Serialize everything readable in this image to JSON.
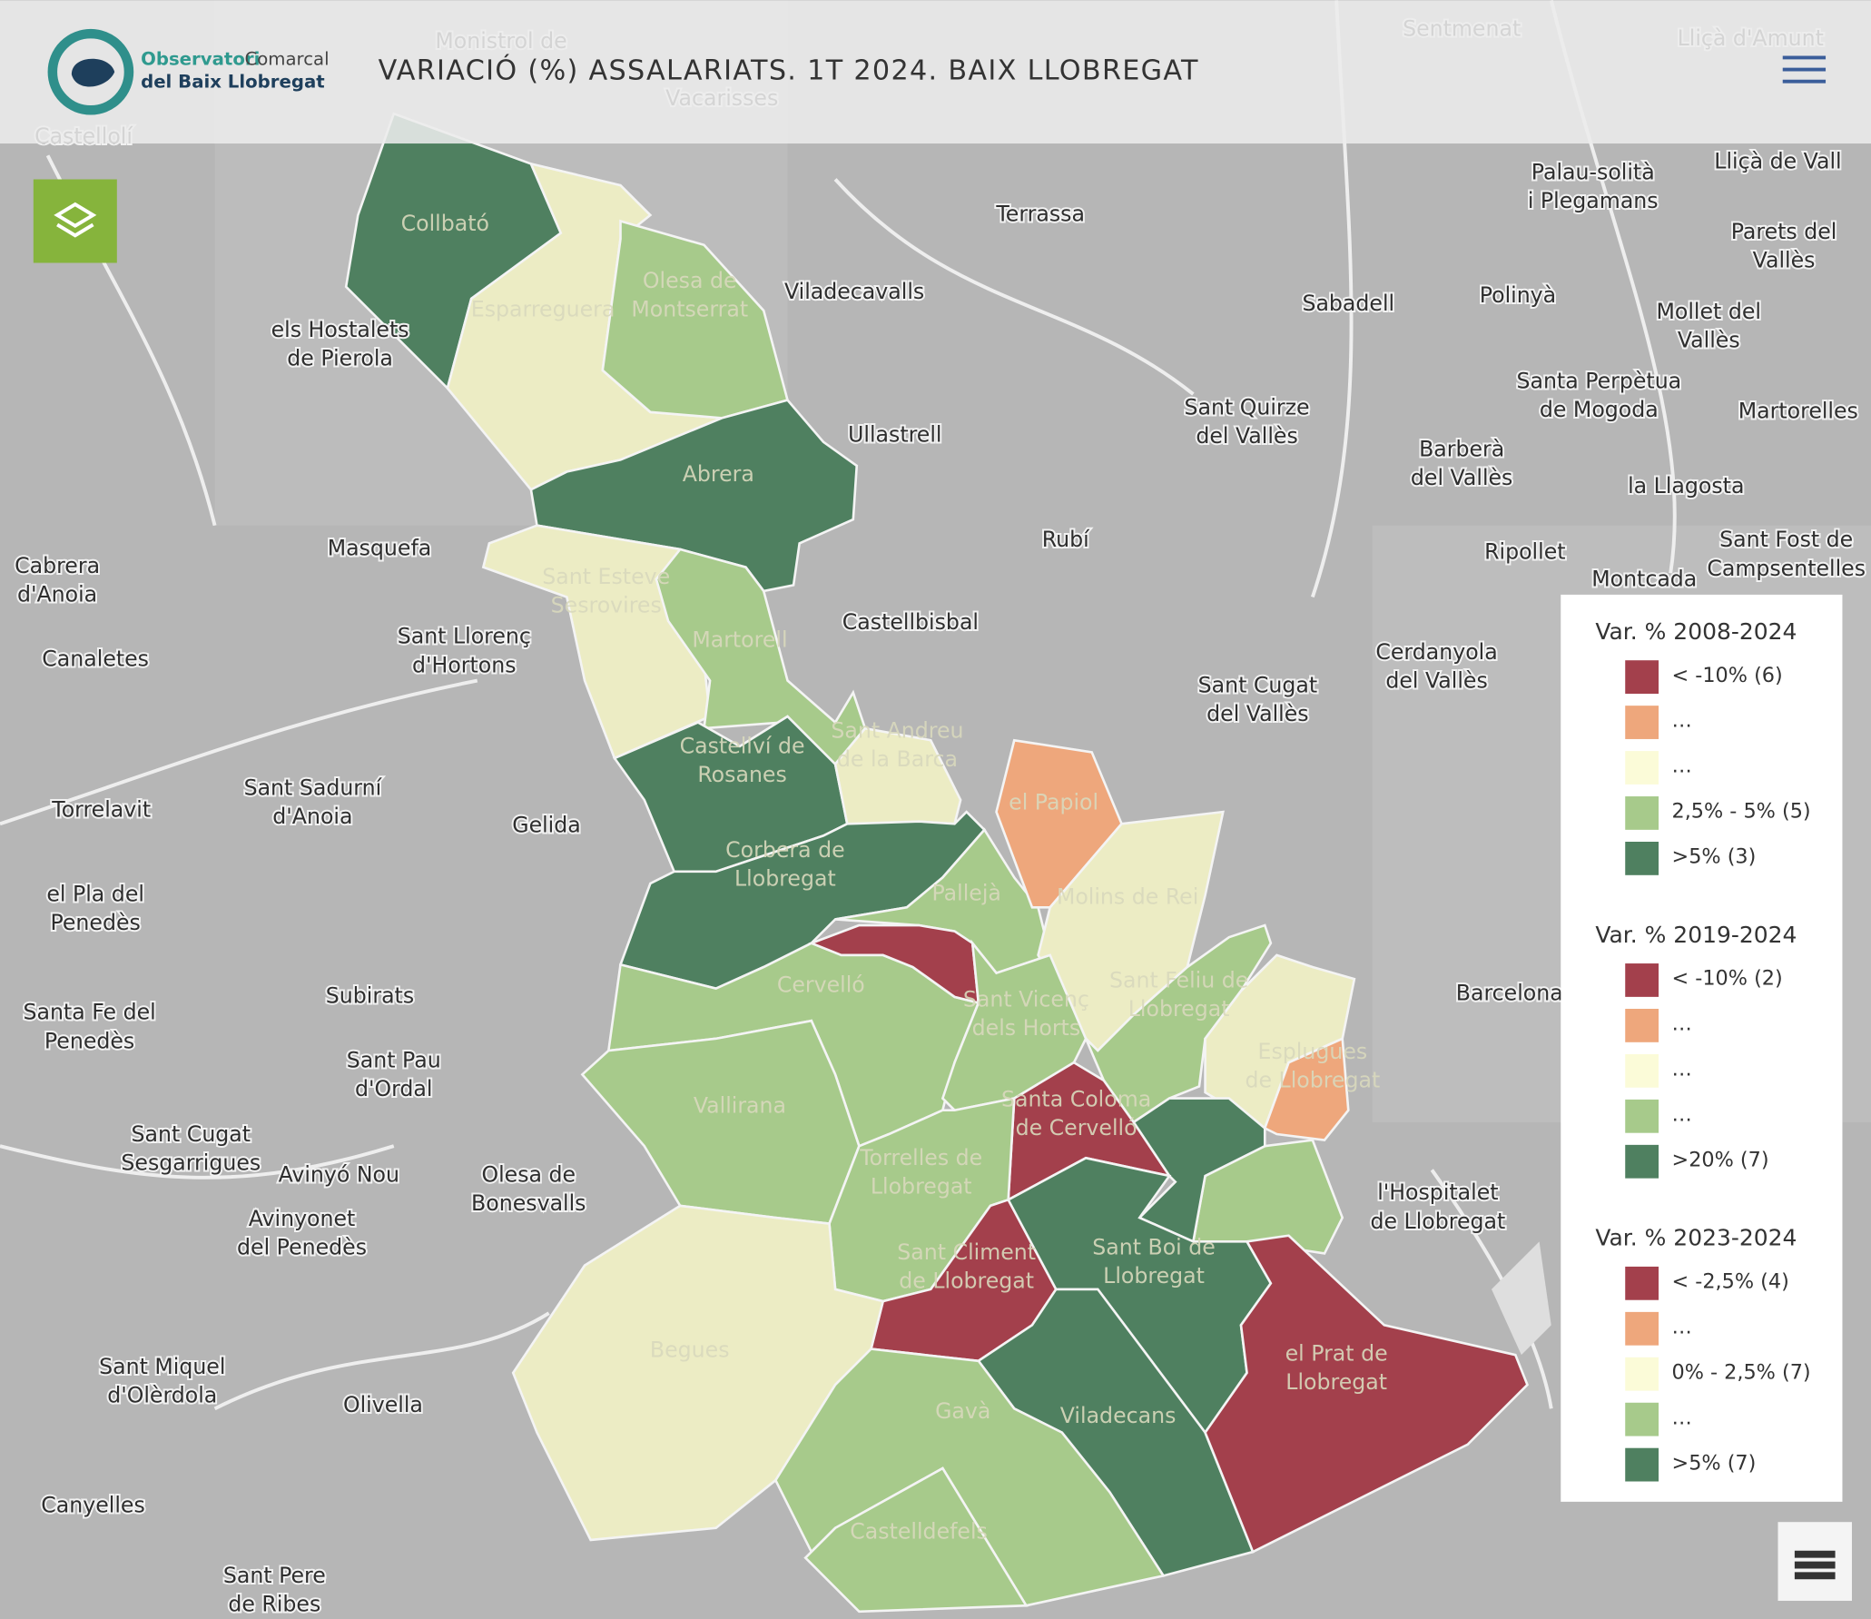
{
  "header": {
    "logo_word1": "Observatori",
    "logo_word2": "Comarcal",
    "logo_line2": "del Baix Llobregat",
    "title": "VARIACIÓ (%) ASSALARIATS. 1T 2024. BAIX LLOBREGAT"
  },
  "legend": {
    "sections": [
      {
        "title": "Var. % 2008-2024",
        "items": [
          {
            "label": "< -10% (6)",
            "color": "#a3404c"
          },
          {
            "label": "…",
            "color": "#eea77c"
          },
          {
            "label": "…",
            "color": "#fbfbd8"
          },
          {
            "label": "2,5% - 5% (5)",
            "color": "#a7ca8b"
          },
          {
            "label": ">5% (3)",
            "color": "#4f8060"
          }
        ]
      },
      {
        "title": "Var. % 2019-2024",
        "items": [
          {
            "label": "< -10% (2)",
            "color": "#a3404c"
          },
          {
            "label": "…",
            "color": "#eea77c"
          },
          {
            "label": "…",
            "color": "#fbfbd8"
          },
          {
            "label": "…",
            "color": "#a7ca8b"
          },
          {
            "label": ">20% (7)",
            "color": "#4f8060"
          }
        ]
      },
      {
        "title": "Var. % 2023-2024",
        "items": [
          {
            "label": "< -2,5% (4)",
            "color": "#a3404c"
          },
          {
            "label": "…",
            "color": "#eea77c"
          },
          {
            "label": "0% - 2,5% (7)",
            "color": "#fbfbd8"
          },
          {
            "label": "…",
            "color": "#a7ca8b"
          },
          {
            "label": ">5% (7)",
            "color": "#4f8060"
          }
        ]
      }
    ]
  },
  "municipalities": [
    {
      "lines": [
        "Collbató"
      ]
    },
    {
      "lines": [
        "Esparreguera"
      ]
    },
    {
      "lines": [
        "Olesa de",
        "Montserrat"
      ]
    },
    {
      "lines": [
        "Abrera"
      ]
    },
    {
      "lines": [
        "Sant Esteve",
        "Sesrovires"
      ]
    },
    {
      "lines": [
        "Martorell"
      ]
    },
    {
      "lines": [
        "Castellví de",
        "Rosanes"
      ]
    },
    {
      "lines": [
        "Sant Andreu",
        "de la Barca"
      ]
    },
    {
      "lines": [
        "el Papiol"
      ]
    },
    {
      "lines": [
        "Corbera de",
        "Llobregat"
      ]
    },
    {
      "lines": [
        "Pallejà"
      ]
    },
    {
      "lines": [
        "Molins de Rei"
      ]
    },
    {
      "lines": [
        "Cervelló"
      ]
    },
    {
      "lines": [
        "Sant Vicenç",
        "dels Horts"
      ]
    },
    {
      "lines": [
        "Sant Feliu de",
        "Llobregat"
      ]
    },
    {
      "lines": [
        "Esplugues",
        "de Llobregat"
      ]
    },
    {
      "lines": [
        "Vallirana"
      ]
    },
    {
      "lines": [
        "Santa Coloma",
        "de Cervelló"
      ]
    },
    {
      "lines": [
        "Torrelles de",
        "Llobregat"
      ]
    },
    {
      "lines": [
        "Sant Climent",
        "de Llobregat"
      ]
    },
    {
      "lines": [
        "Sant Boi de",
        "Llobregat"
      ]
    },
    {
      "lines": [
        "el Prat de",
        "Llobregat"
      ]
    },
    {
      "lines": [
        "Begues"
      ]
    },
    {
      "lines": [
        "Gavà"
      ]
    },
    {
      "lines": [
        "Viladecans"
      ]
    },
    {
      "lines": [
        "Castelldefels"
      ]
    }
  ],
  "places": [
    {
      "lines": [
        "Castellolí"
      ]
    },
    {
      "lines": [
        "Monistrol de"
      ]
    },
    {
      "lines": [
        "Vacarisses"
      ]
    },
    {
      "lines": [
        "Sentmenat"
      ]
    },
    {
      "lines": [
        "Lliçà d'Amunt"
      ]
    },
    {
      "lines": [
        "Terrassa"
      ]
    },
    {
      "lines": [
        "Viladecavalls"
      ]
    },
    {
      "lines": [
        "els Hostalets",
        "de Pierola"
      ]
    },
    {
      "lines": [
        "Sabadell"
      ]
    },
    {
      "lines": [
        "Polinyà"
      ]
    },
    {
      "lines": [
        "Palau-solità",
        "i Plegamans"
      ]
    },
    {
      "lines": [
        "Lliçà de Vall"
      ]
    },
    {
      "lines": [
        "Parets del",
        "Vallès"
      ]
    },
    {
      "lines": [
        "Mollet del",
        "Vallès"
      ]
    },
    {
      "lines": [
        "Santa Perpètua",
        "de Mogoda"
      ]
    },
    {
      "lines": [
        "Martorelles"
      ]
    },
    {
      "lines": [
        "Ullastrell"
      ]
    },
    {
      "lines": [
        "Sant Quirze",
        "del Vallès"
      ]
    },
    {
      "lines": [
        "Barberà",
        "del Vallès"
      ]
    },
    {
      "lines": [
        "la Llagosta"
      ]
    },
    {
      "lines": [
        "Masquefa"
      ]
    },
    {
      "lines": [
        "Rubí"
      ]
    },
    {
      "lines": [
        "Ripollet"
      ]
    },
    {
      "lines": [
        "Sant Fost de",
        "Campsentelles"
      ]
    },
    {
      "lines": [
        "Cabrera",
        "d'Anoia"
      ]
    },
    {
      "lines": [
        "Montcada"
      ]
    },
    {
      "lines": [
        "Castellbisbal"
      ]
    },
    {
      "lines": [
        "Sant Llorenç",
        "d'Hortons"
      ]
    },
    {
      "lines": [
        "Canaletes"
      ]
    },
    {
      "lines": [
        "Cerdanyola",
        "del Vallès"
      ]
    },
    {
      "lines": [
        "Sant Cugat",
        "del Vallès"
      ]
    },
    {
      "lines": [
        "Torrelavit"
      ]
    },
    {
      "lines": [
        "Sant Sadurní",
        "d'Anoia"
      ]
    },
    {
      "lines": [
        "Gelida"
      ]
    },
    {
      "lines": [
        "el Pla del",
        "Penedès"
      ]
    },
    {
      "lines": [
        "Barcelona"
      ]
    },
    {
      "lines": [
        "Subirats"
      ]
    },
    {
      "lines": [
        "Santa Fe del",
        "Penedès"
      ]
    },
    {
      "lines": [
        "Sant Pau",
        "d'Ordal"
      ]
    },
    {
      "lines": [
        "Sant Cugat",
        "Sesgarrigues"
      ]
    },
    {
      "lines": [
        "Avinyó Nou"
      ]
    },
    {
      "lines": [
        "Olesa de",
        "Bonesvalls"
      ]
    },
    {
      "lines": [
        "Avinyonet",
        "del Penedès"
      ]
    },
    {
      "lines": [
        "l'Hospitalet",
        "de Llobregat"
      ]
    },
    {
      "lines": [
        "Sant Miquel",
        "d'Olèrdola"
      ]
    },
    {
      "lines": [
        "Olivella"
      ]
    },
    {
      "lines": [
        "Canyelles"
      ]
    },
    {
      "lines": [
        "Sant Pere",
        "de Ribes"
      ]
    }
  ]
}
